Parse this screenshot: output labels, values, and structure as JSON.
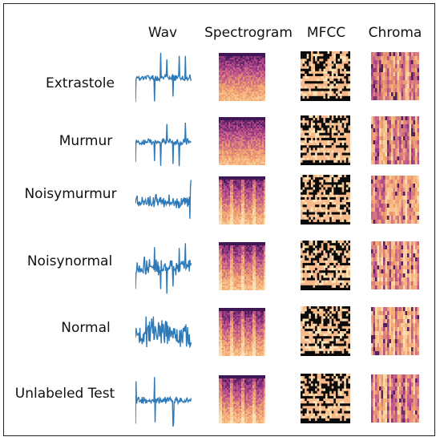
{
  "columns": [
    "Wav",
    "Spectrogram",
    "MFCC",
    "Chroma"
  ],
  "rows": [
    {
      "label": "Extrastole"
    },
    {
      "label": "Murmur"
    },
    {
      "label": "Noisymurmur"
    },
    {
      "label": "Noisynormal"
    },
    {
      "label": "Normal"
    },
    {
      "label": "Unlabeled Test"
    }
  ],
  "colors": {
    "waveform": "#2e7ab8",
    "magma_dark": "#2a0f4a",
    "magma_mid": "#b5478f",
    "magma_light": "#f4a66f",
    "magma_pale": "#fbe3b5",
    "mfcc_black": "#0a0a0a",
    "mfcc_light": "#f7b98a"
  }
}
